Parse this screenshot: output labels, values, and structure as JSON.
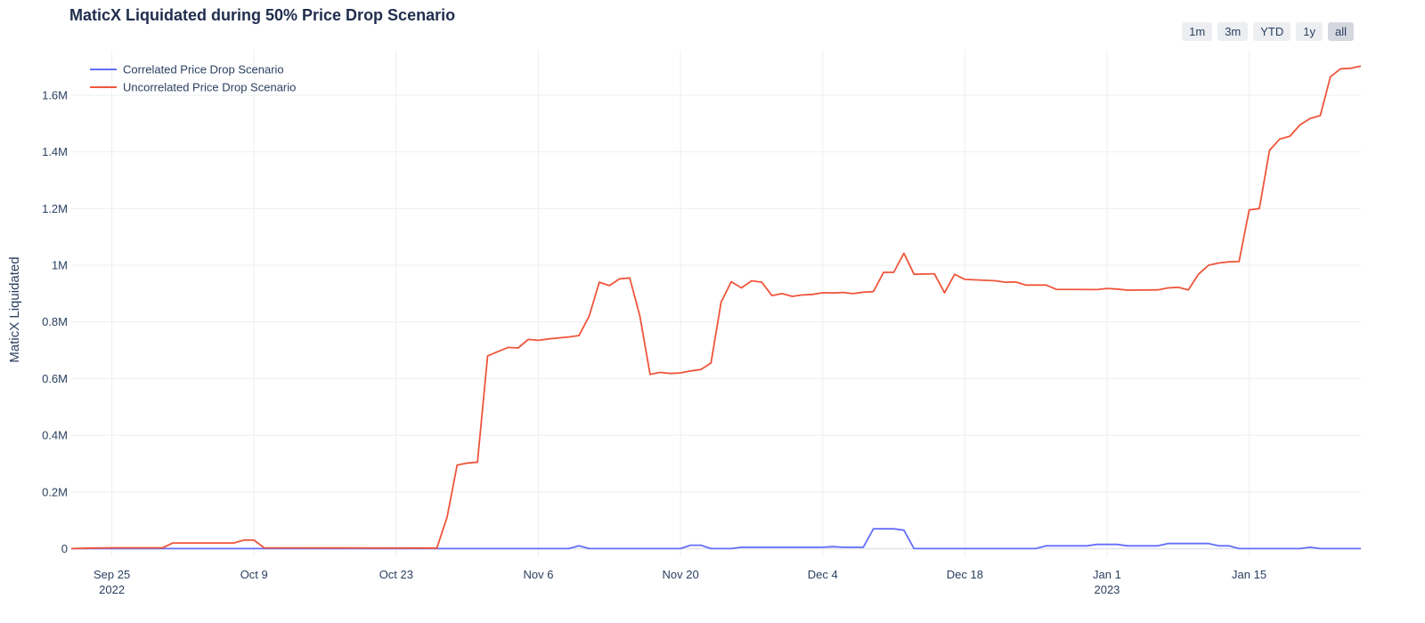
{
  "title": "MaticX Liquidated during 50% Price Drop Scenario",
  "range_buttons": [
    {
      "label": "1m",
      "active": false
    },
    {
      "label": "3m",
      "active": false
    },
    {
      "label": "YTD",
      "active": false
    },
    {
      "label": "1y",
      "active": false
    },
    {
      "label": "all",
      "active": true
    }
  ],
  "chart_data": {
    "type": "line",
    "title": "MaticX Liquidated during 50% Price Drop Scenario",
    "xlabel": "",
    "ylabel": "MaticX Liquidated",
    "x_range": [
      "2022-09-21",
      "2023-01-26"
    ],
    "ylim": [
      -30000,
      1760000
    ],
    "grid": true,
    "legend_position": "top-left",
    "y_ticks": [
      {
        "value": 0,
        "label": "0"
      },
      {
        "value": 200000,
        "label": "0.2M"
      },
      {
        "value": 400000,
        "label": "0.4M"
      },
      {
        "value": 600000,
        "label": "0.6M"
      },
      {
        "value": 800000,
        "label": "0.8M"
      },
      {
        "value": 1000000,
        "label": "1M"
      },
      {
        "value": 1200000,
        "label": "1.2M"
      },
      {
        "value": 1400000,
        "label": "1.4M"
      },
      {
        "value": 1600000,
        "label": "1.6M"
      }
    ],
    "x_ticks": [
      {
        "date": "2022-09-25",
        "label": "Sep 25",
        "sub": "2022"
      },
      {
        "date": "2022-10-09",
        "label": "Oct 9",
        "sub": ""
      },
      {
        "date": "2022-10-23",
        "label": "Oct 23",
        "sub": ""
      },
      {
        "date": "2022-11-06",
        "label": "Nov 6",
        "sub": ""
      },
      {
        "date": "2022-11-20",
        "label": "Nov 20",
        "sub": ""
      },
      {
        "date": "2022-12-04",
        "label": "Dec 4",
        "sub": ""
      },
      {
        "date": "2022-12-18",
        "label": "Dec 18",
        "sub": ""
      },
      {
        "date": "2023-01-01",
        "label": "Jan 1",
        "sub": "2023"
      },
      {
        "date": "2023-01-15",
        "label": "Jan 15",
        "sub": ""
      }
    ],
    "series": [
      {
        "name": "Correlated Price Drop Scenario",
        "color": "#636efa",
        "points": [
          [
            "2022-09-21",
            0
          ],
          [
            "2022-09-30",
            0
          ],
          [
            "2022-10-07",
            0
          ],
          [
            "2022-10-27",
            0
          ],
          [
            "2022-11-09",
            0
          ],
          [
            "2022-11-10",
            10000
          ],
          [
            "2022-11-11",
            0
          ],
          [
            "2022-11-20",
            0
          ],
          [
            "2022-11-21",
            12000
          ],
          [
            "2022-11-22",
            12000
          ],
          [
            "2022-11-23",
            0
          ],
          [
            "2022-11-25",
            0
          ],
          [
            "2022-11-26",
            5000
          ],
          [
            "2022-12-04",
            5000
          ],
          [
            "2022-12-05",
            7000
          ],
          [
            "2022-12-06",
            5000
          ],
          [
            "2022-12-08",
            5000
          ],
          [
            "2022-12-09",
            70000
          ],
          [
            "2022-12-11",
            70000
          ],
          [
            "2022-12-12",
            65000
          ],
          [
            "2022-12-13",
            0
          ],
          [
            "2022-12-25",
            0
          ],
          [
            "2022-12-26",
            10000
          ],
          [
            "2022-12-30",
            10000
          ],
          [
            "2022-12-31",
            15000
          ],
          [
            "2023-01-02",
            15000
          ],
          [
            "2023-01-03",
            10000
          ],
          [
            "2023-01-06",
            10000
          ],
          [
            "2023-01-07",
            18000
          ],
          [
            "2023-01-11",
            18000
          ],
          [
            "2023-01-12",
            10000
          ],
          [
            "2023-01-13",
            10000
          ],
          [
            "2023-01-14",
            0
          ],
          [
            "2023-01-20",
            0
          ],
          [
            "2023-01-21",
            5000
          ],
          [
            "2023-01-22",
            0
          ],
          [
            "2023-01-26",
            0
          ]
        ]
      },
      {
        "name": "Uncorrelated Price Drop Scenario",
        "color": "#ef553b",
        "points": [
          [
            "2022-09-21",
            0
          ],
          [
            "2022-09-23",
            2000
          ],
          [
            "2022-09-25",
            3000
          ],
          [
            "2022-09-30",
            3000
          ],
          [
            "2022-10-01",
            20000
          ],
          [
            "2022-10-07",
            20000
          ],
          [
            "2022-10-08",
            30000
          ],
          [
            "2022-10-09",
            30000
          ],
          [
            "2022-10-10",
            3000
          ],
          [
            "2022-10-27",
            2000
          ],
          [
            "2022-10-28",
            110000
          ],
          [
            "2022-10-29",
            295000
          ],
          [
            "2022-10-30",
            302000
          ],
          [
            "2022-10-31",
            305000
          ],
          [
            "2022-11-01",
            680000
          ],
          [
            "2022-11-02",
            695000
          ],
          [
            "2022-11-03",
            710000
          ],
          [
            "2022-11-04",
            708000
          ],
          [
            "2022-11-05",
            738000
          ],
          [
            "2022-11-06",
            735000
          ],
          [
            "2022-11-07",
            740000
          ],
          [
            "2022-11-09",
            747000
          ],
          [
            "2022-11-10",
            752000
          ],
          [
            "2022-11-11",
            820000
          ],
          [
            "2022-11-12",
            940000
          ],
          [
            "2022-11-13",
            928000
          ],
          [
            "2022-11-14",
            952000
          ],
          [
            "2022-11-15",
            955000
          ],
          [
            "2022-11-16",
            820000
          ],
          [
            "2022-11-17",
            615000
          ],
          [
            "2022-11-18",
            622000
          ],
          [
            "2022-11-19",
            618000
          ],
          [
            "2022-11-20",
            620000
          ],
          [
            "2022-11-21",
            627000
          ],
          [
            "2022-11-22",
            632000
          ],
          [
            "2022-11-23",
            655000
          ],
          [
            "2022-11-24",
            870000
          ],
          [
            "2022-11-25",
            942000
          ],
          [
            "2022-11-26",
            920000
          ],
          [
            "2022-11-27",
            945000
          ],
          [
            "2022-11-28",
            940000
          ],
          [
            "2022-11-29",
            893000
          ],
          [
            "2022-11-30",
            900000
          ],
          [
            "2022-12-01",
            890000
          ],
          [
            "2022-12-02",
            895000
          ],
          [
            "2022-12-03",
            897000
          ],
          [
            "2022-12-04",
            903000
          ],
          [
            "2022-12-05",
            902000
          ],
          [
            "2022-12-06",
            904000
          ],
          [
            "2022-12-07",
            900000
          ],
          [
            "2022-12-08",
            905000
          ],
          [
            "2022-12-09",
            907000
          ],
          [
            "2022-12-10",
            975000
          ],
          [
            "2022-12-11",
            975000
          ],
          [
            "2022-12-12",
            1042000
          ],
          [
            "2022-12-13",
            968000
          ],
          [
            "2022-12-15",
            970000
          ],
          [
            "2022-12-16",
            903000
          ],
          [
            "2022-12-17",
            968000
          ],
          [
            "2022-12-18",
            950000
          ],
          [
            "2022-12-21",
            945000
          ],
          [
            "2022-12-22",
            940000
          ],
          [
            "2022-12-23",
            941000
          ],
          [
            "2022-12-24",
            930000
          ],
          [
            "2022-12-26",
            930000
          ],
          [
            "2022-12-27",
            915000
          ],
          [
            "2022-12-31",
            914000
          ],
          [
            "2023-01-01",
            918000
          ],
          [
            "2023-01-02",
            916000
          ],
          [
            "2023-01-03",
            912000
          ],
          [
            "2023-01-06",
            913000
          ],
          [
            "2023-01-07",
            920000
          ],
          [
            "2023-01-08",
            922000
          ],
          [
            "2023-01-09",
            913000
          ],
          [
            "2023-01-10",
            968000
          ],
          [
            "2023-01-11",
            1000000
          ],
          [
            "2023-01-12",
            1008000
          ],
          [
            "2023-01-13",
            1012000
          ],
          [
            "2023-01-14",
            1013000
          ],
          [
            "2023-01-15",
            1195000
          ],
          [
            "2023-01-16",
            1200000
          ],
          [
            "2023-01-17",
            1405000
          ],
          [
            "2023-01-18",
            1445000
          ],
          [
            "2023-01-19",
            1455000
          ],
          [
            "2023-01-20",
            1495000
          ],
          [
            "2023-01-21",
            1518000
          ],
          [
            "2023-01-22",
            1528000
          ],
          [
            "2023-01-23",
            1665000
          ],
          [
            "2023-01-24",
            1693000
          ],
          [
            "2023-01-25",
            1695000
          ],
          [
            "2023-01-26",
            1703000
          ]
        ]
      }
    ]
  }
}
